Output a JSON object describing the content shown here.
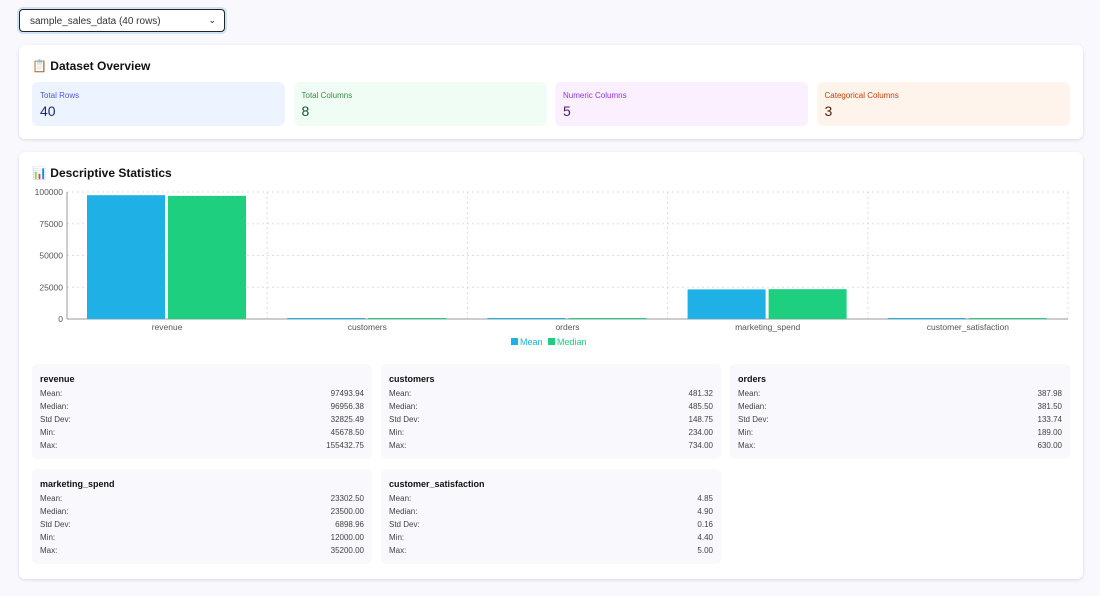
{
  "dataset_select": {
    "value": "sample_sales_data (40 rows)"
  },
  "overview": {
    "title": "Dataset Overview",
    "icon": "clipboard-icon",
    "metrics": [
      {
        "label": "Total Rows",
        "value": "40",
        "bg": "#eef4ff",
        "label_color": "#4a5ad8",
        "value_color": "#1e2a6b"
      },
      {
        "label": "Total Columns",
        "value": "8",
        "bg": "#f0fdf4",
        "label_color": "#3a8a4a",
        "value_color": "#14532d"
      },
      {
        "label": "Numeric Columns",
        "value": "5",
        "bg": "#faf0ff",
        "label_color": "#9333ea",
        "value_color": "#4c1d6b"
      },
      {
        "label": "Categorical Columns",
        "value": "3",
        "bg": "#fff4ec",
        "label_color": "#c2410c",
        "value_color": "#5a1e0a"
      }
    ]
  },
  "stats": {
    "title": "Descriptive Statistics",
    "icon": "bar-chart-icon",
    "row_labels": [
      "Mean:",
      "Median:",
      "Std Dev:",
      "Min:",
      "Max:"
    ],
    "columns": [
      {
        "name": "revenue",
        "values": [
          "97493.94",
          "96956.38",
          "32825.49",
          "45678.50",
          "155432.75"
        ]
      },
      {
        "name": "customers",
        "values": [
          "481.32",
          "485.50",
          "148.75",
          "234.00",
          "734.00"
        ]
      },
      {
        "name": "orders",
        "values": [
          "387.98",
          "381.50",
          "133.74",
          "189.00",
          "630.00"
        ]
      },
      {
        "name": "marketing_spend",
        "values": [
          "23302.50",
          "23500.00",
          "6898.96",
          "12000.00",
          "35200.00"
        ]
      },
      {
        "name": "customer_satisfaction",
        "values": [
          "4.85",
          "4.90",
          "0.16",
          "4.40",
          "5.00"
        ]
      }
    ]
  },
  "chart_data": {
    "type": "bar",
    "categories": [
      "revenue",
      "customers",
      "orders",
      "marketing_spend",
      "customer_satisfaction"
    ],
    "series": [
      {
        "name": "Mean",
        "color": "#1fb0e6",
        "values": [
          97493.94,
          481.32,
          387.98,
          23302.5,
          4.85
        ]
      },
      {
        "name": "Median",
        "color": "#1fcf80",
        "values": [
          96956.38,
          485.5,
          381.5,
          23500,
          4.9
        ]
      }
    ],
    "ylim": [
      0,
      100000
    ],
    "yticks": [
      0,
      25000,
      50000,
      75000,
      100000
    ],
    "grid": true,
    "legend": "bottom-center"
  }
}
